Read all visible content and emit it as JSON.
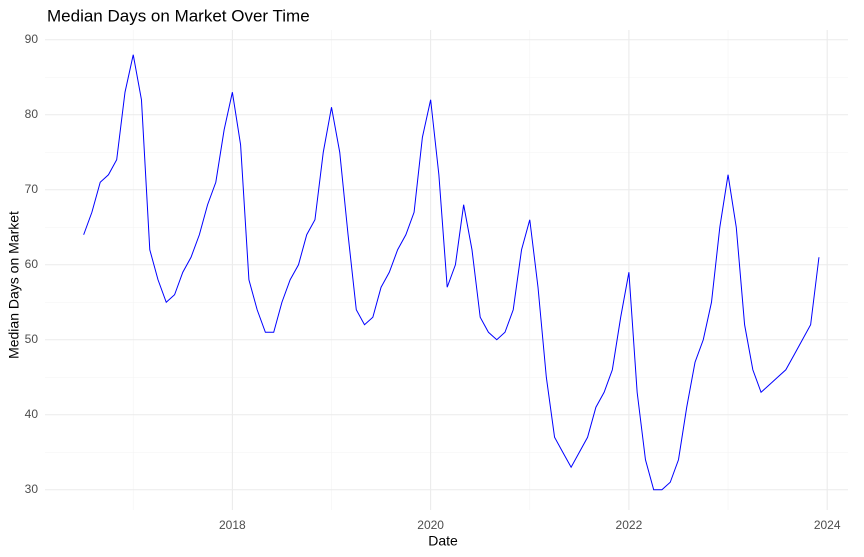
{
  "chart_data": {
    "type": "line",
    "title": "Median Days on Market Over Time",
    "x_label": "Date",
    "y_label": "Median Days on Market",
    "x": [
      2016.5,
      2016.583,
      2016.667,
      2016.75,
      2016.833,
      2016.917,
      2017,
      2017.083,
      2017.167,
      2017.25,
      2017.333,
      2017.417,
      2017.5,
      2017.583,
      2017.667,
      2017.75,
      2017.833,
      2017.917,
      2018,
      2018.083,
      2018.167,
      2018.25,
      2018.333,
      2018.417,
      2018.5,
      2018.583,
      2018.667,
      2018.75,
      2018.833,
      2018.917,
      2019,
      2019.083,
      2019.167,
      2019.25,
      2019.333,
      2019.417,
      2019.5,
      2019.583,
      2019.667,
      2019.75,
      2019.833,
      2019.917,
      2020,
      2020.083,
      2020.167,
      2020.25,
      2020.333,
      2020.417,
      2020.5,
      2020.583,
      2020.667,
      2020.75,
      2020.833,
      2020.917,
      2021,
      2021.083,
      2021.167,
      2021.25,
      2021.333,
      2021.417,
      2021.5,
      2021.583,
      2021.667,
      2021.75,
      2021.833,
      2021.917,
      2022,
      2022.083,
      2022.167,
      2022.25,
      2022.333,
      2022.417,
      2022.5,
      2022.583,
      2022.667,
      2022.75,
      2022.833,
      2022.917,
      2023,
      2023.083,
      2023.167,
      2023.25,
      2023.333,
      2023.417,
      2023.5,
      2023.583,
      2023.667,
      2023.75,
      2023.833,
      2023.917
    ],
    "values": [
      64,
      67,
      71,
      72,
      74,
      83,
      88,
      82,
      62,
      58,
      55,
      56,
      59,
      61,
      64,
      68,
      71,
      78,
      83,
      76,
      58,
      54,
      51,
      51,
      55,
      58,
      60,
      64,
      66,
      75,
      81,
      75,
      64,
      54,
      52,
      53,
      57,
      59,
      62,
      64,
      67,
      77,
      82,
      72,
      57,
      60,
      68,
      62,
      53,
      51,
      50,
      51,
      54,
      62,
      66,
      57,
      45,
      37,
      35,
      33,
      35,
      37,
      41,
      43,
      46,
      53,
      59,
      43,
      34,
      30,
      30,
      31,
      34,
      41,
      47,
      50,
      55,
      65,
      72,
      65,
      52,
      46,
      43,
      44,
      45,
      46,
      48,
      50,
      52,
      61
    ],
    "color": "#0000ff",
    "xlim": [
      2016.11,
      2024.21
    ],
    "xticks": [
      2018,
      2020,
      2022,
      2024
    ],
    "ylim": [
      27.3,
      91.3
    ],
    "yticks": [
      30,
      40,
      50,
      60,
      70,
      80,
      90
    ],
    "grid": true
  }
}
